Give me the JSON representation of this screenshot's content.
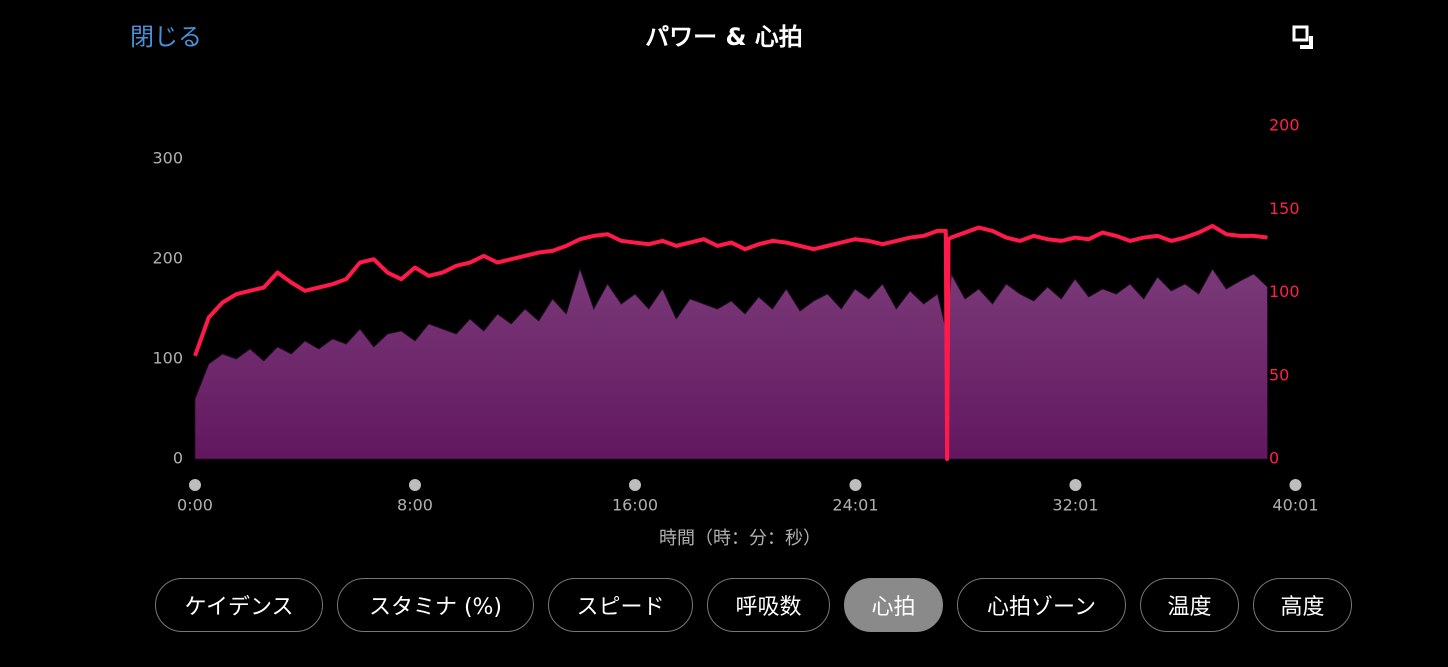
{
  "header": {
    "close": "閉じる",
    "title": "パワー & 心拍"
  },
  "chart_data": {
    "type": "area",
    "x": [
      0,
      0.5,
      1,
      1.5,
      2,
      2.5,
      3,
      3.5,
      4,
      4.5,
      5,
      5.5,
      6,
      6.5,
      7,
      7.5,
      8,
      8.5,
      9,
      9.5,
      10,
      10.5,
      11,
      11.5,
      12,
      12.5,
      13,
      13.5,
      14,
      14.5,
      15,
      15.5,
      16,
      16.5,
      17,
      17.5,
      18,
      18.5,
      19,
      19.5,
      20,
      20.5,
      21,
      21.5,
      22,
      22.5,
      23,
      23.5,
      24,
      24.5,
      25,
      25.5,
      26,
      26.5,
      27,
      27.3,
      27.35,
      27.4,
      27.5,
      28,
      28.5,
      29,
      29.5,
      30,
      30.5,
      31,
      31.5,
      32,
      32.5,
      33,
      33.5,
      34,
      34.5,
      35,
      35.5,
      36,
      36.5,
      37,
      37.5,
      38,
      38.5,
      39
    ],
    "series": [
      {
        "kind": "area",
        "color": "#6e2a6c",
        "values": [
          60,
          95,
          105,
          100,
          110,
          98,
          112,
          105,
          118,
          110,
          120,
          115,
          130,
          112,
          125,
          128,
          118,
          135,
          130,
          125,
          140,
          128,
          145,
          135,
          150,
          138,
          160,
          145,
          190,
          150,
          175,
          155,
          165,
          150,
          170,
          140,
          160,
          155,
          150,
          158,
          145,
          162,
          150,
          170,
          148,
          158,
          165,
          150,
          170,
          160,
          175,
          150,
          168,
          155,
          165,
          130,
          95,
          150,
          185,
          160,
          170,
          155,
          175,
          165,
          158,
          172,
          160,
          180,
          162,
          170,
          165,
          175,
          160,
          182,
          168,
          175,
          165,
          190,
          170,
          178,
          185,
          172
        ]
      },
      {
        "kind": "line",
        "axis": "y2",
        "color": "#ff1a4a",
        "values": [
          62,
          85,
          94,
          99,
          101,
          103,
          112,
          106,
          101,
          103,
          105,
          108,
          118,
          120,
          112,
          108,
          115,
          110,
          112,
          116,
          118,
          122,
          118,
          120,
          122,
          124,
          125,
          128,
          132,
          134,
          135,
          131,
          130,
          129,
          131,
          128,
          130,
          132,
          128,
          130,
          126,
          129,
          131,
          130,
          128,
          126,
          128,
          130,
          132,
          131,
          129,
          131,
          133,
          134,
          137,
          137,
          0,
          132,
          133,
          136,
          139,
          137,
          133,
          131,
          134,
          132,
          131,
          133,
          132,
          136,
          134,
          131,
          133,
          134,
          131,
          133,
          136,
          140,
          135,
          134,
          134,
          133
        ]
      }
    ],
    "xlim": [
      0,
      40
    ],
    "xticks": [
      {
        "value": 0,
        "label": "0:00"
      },
      {
        "value": 8,
        "label": "8:00"
      },
      {
        "value": 16,
        "label": "16:00"
      },
      {
        "value": 24.0167,
        "label": "24:01"
      },
      {
        "value": 32.0167,
        "label": "32:01"
      },
      {
        "value": 40.0167,
        "label": "40:01"
      }
    ],
    "x_label": "時間（時：分：秒）",
    "ylim": [
      0,
      333
    ],
    "yticks": [
      0,
      100,
      200,
      300
    ],
    "y2lim": [
      0,
      200
    ],
    "y2ticks": [
      0,
      50,
      100,
      150,
      200
    ],
    "y2_color": "#ff2050"
  },
  "buttons": [
    {
      "label": "ケイデンス"
    },
    {
      "label": "スタミナ (%)"
    },
    {
      "label": "スピード"
    },
    {
      "label": "呼吸数"
    },
    {
      "label": "心拍",
      "selected": true
    },
    {
      "label": "心拍ゾーン"
    },
    {
      "label": "温度"
    },
    {
      "label": "高度"
    }
  ]
}
